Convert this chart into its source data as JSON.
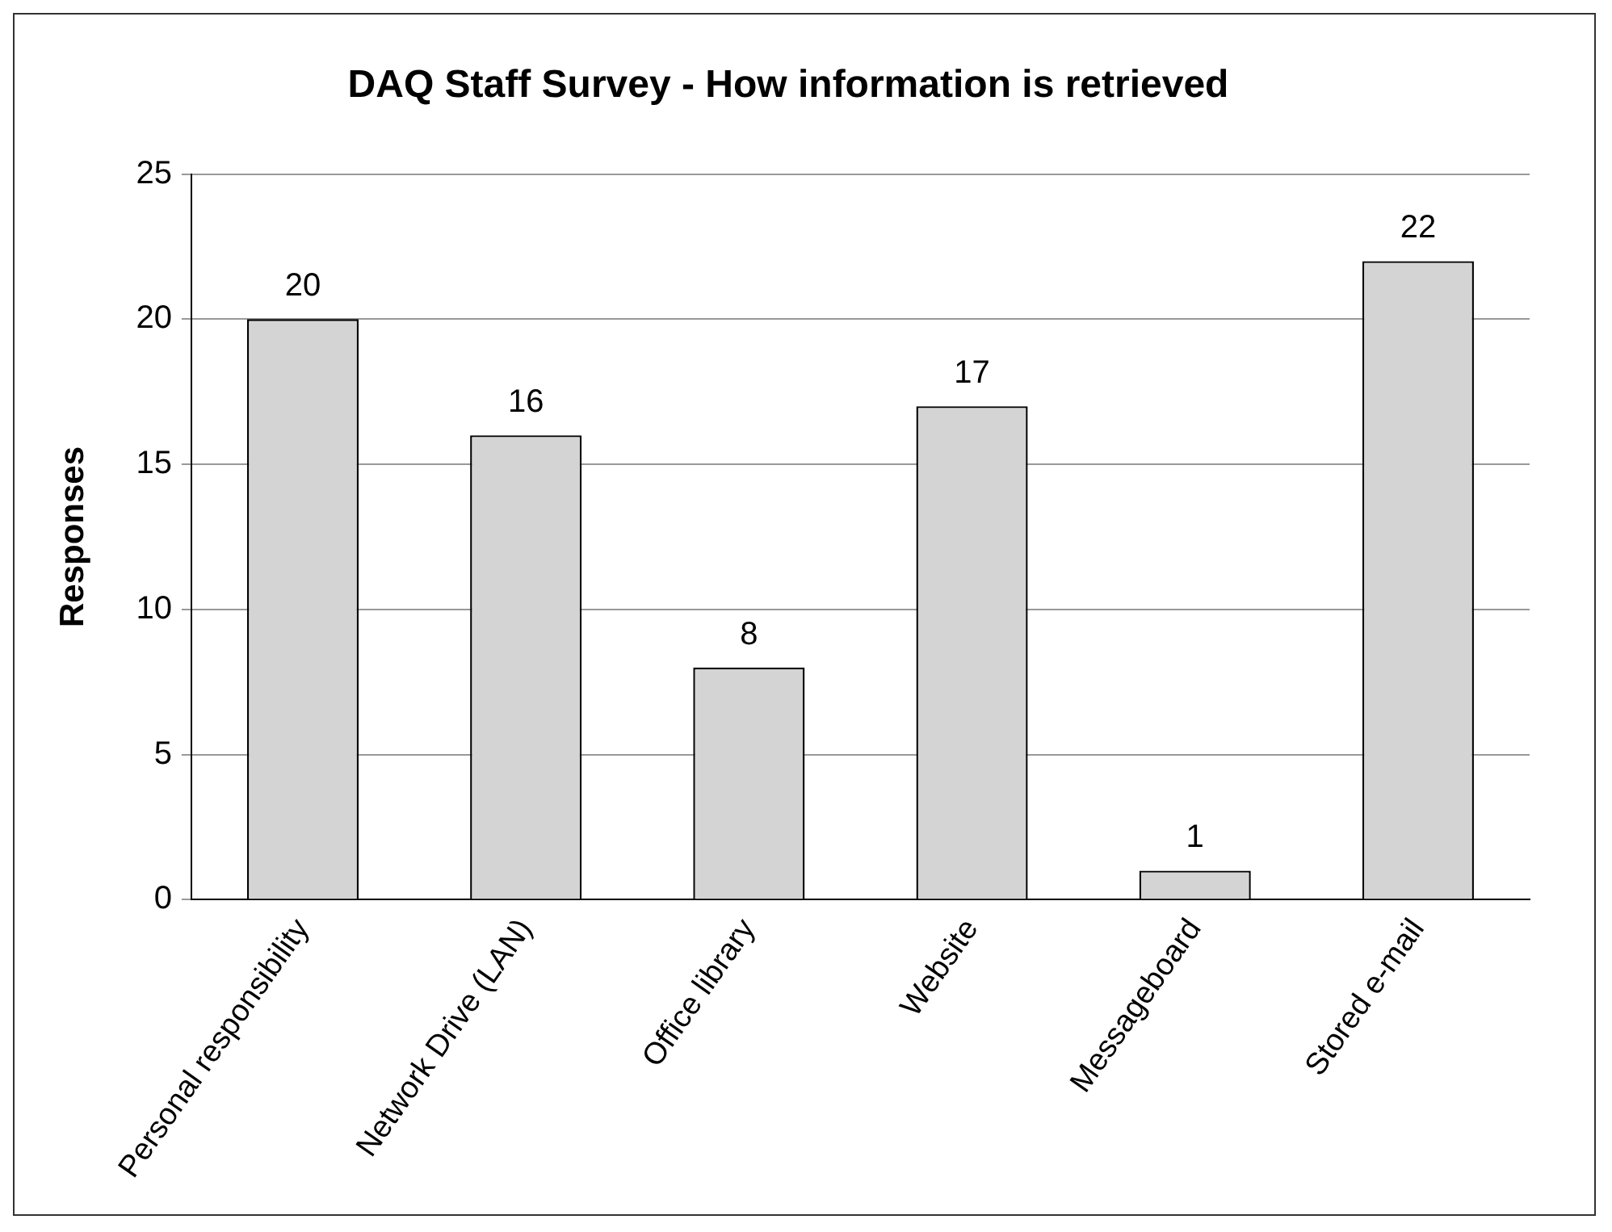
{
  "chart_data": {
    "type": "bar",
    "title": "DAQ Staff Survey - How information is retrieved",
    "ylabel": "Responses",
    "categories": [
      "Personal responsibility",
      "Network Drive (LAN)",
      "Office library",
      "Website",
      "Messageboard",
      "Stored e-mail"
    ],
    "values": [
      20,
      16,
      8,
      17,
      1,
      22
    ],
    "color": "#d4d4d4",
    "ylim": [
      0,
      25
    ],
    "yticks": [
      0,
      5,
      10,
      15,
      20,
      25
    ],
    "grid": "y",
    "data_labels": true
  }
}
